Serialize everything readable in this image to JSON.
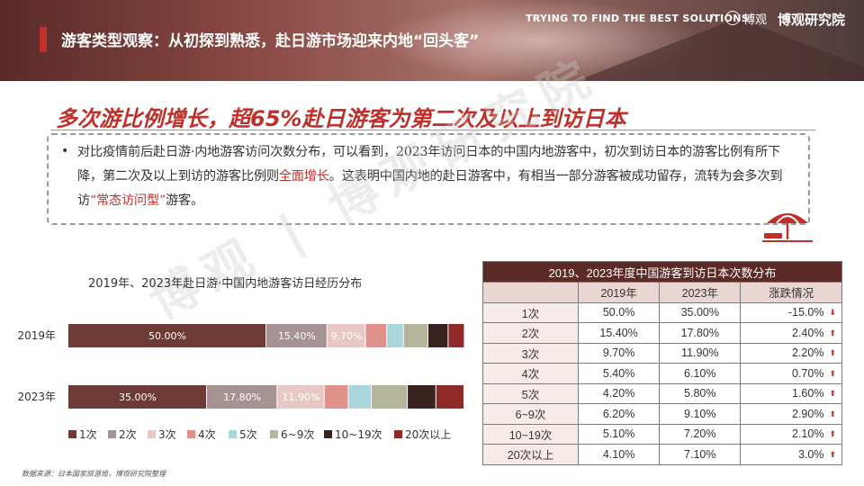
{
  "header": {
    "section_title": "游客类型观察：从初探到熟悉，赴日游市场迎来内地“回头客”",
    "slogan": "TRYING TO FIND THE BEST SOLUTIONS",
    "slash": "/",
    "brand": "博观研究院",
    "logo_mark": "博观"
  },
  "headline": "多次游比例增长，超65%赴日游客为第二次及以上到访日本",
  "summary": {
    "bullet": "•",
    "part1": "对比疫情前后赴日游·内地游客访问次数分布，可以看到，2023年访问日本的中国内地游客中，初次到访日本的游客比例有所下降，第二次及以上到访的游客比例则",
    "highlight1": "全面增长",
    "part2": "。这表明中国内地的赴日游客中，有相当一部分游客被成功留存，流转为会多次到访",
    "highlight2": "“常态访问型”",
    "part3": "游客。"
  },
  "watermark": "博观 | 博观研究院",
  "chart_data": {
    "type": "bar",
    "orientation": "horizontal",
    "stacked": true,
    "title": "2019年、2023年赴日游·中国内地游客访日经历分布",
    "categories": [
      "2019年",
      "2023年"
    ],
    "series": [
      {
        "name": "1次",
        "values": [
          50.0,
          35.0
        ],
        "color": "#6e3a36"
      },
      {
        "name": "2次",
        "values": [
          15.4,
          17.8
        ],
        "color": "#a69292"
      },
      {
        "name": "3次",
        "values": [
          9.7,
          11.9
        ],
        "color": "#e8c8c4"
      },
      {
        "name": "4次",
        "values": [
          5.4,
          6.1
        ],
        "color": "#e0918a"
      },
      {
        "name": "5次",
        "values": [
          4.2,
          5.8
        ],
        "color": "#a9d6dd"
      },
      {
        "name": "6~9次",
        "values": [
          6.2,
          9.1
        ],
        "color": "#b5b59c"
      },
      {
        "name": "10~19次",
        "values": [
          5.1,
          7.2
        ],
        "color": "#3a2220"
      },
      {
        "name": "20次以上",
        "values": [
          4.1,
          7.1
        ],
        "color": "#8f2a28"
      }
    ],
    "data_labels": [
      [
        "50.00%",
        "15.40%",
        "9.70%"
      ],
      [
        "35.00%",
        "17.80%",
        "11.90%"
      ]
    ],
    "legend_position": "bottom",
    "grid": false
  },
  "table": {
    "caption": "2019、2023年度中国游客到访日本次数分布",
    "headers": [
      "",
      "2019年",
      "2023年",
      "涨跌情况"
    ],
    "rows": [
      {
        "cat": "1次",
        "y2019": "50.0%",
        "y2023": "35.00%",
        "change": "-15.0%",
        "direction": "down"
      },
      {
        "cat": "2次",
        "y2019": "15.40%",
        "y2023": "17.80%",
        "change": "2.40%",
        "direction": "up"
      },
      {
        "cat": "3次",
        "y2019": "9.70%",
        "y2023": "11.90%",
        "change": "2.20%",
        "direction": "up"
      },
      {
        "cat": "4次",
        "y2019": "5.40%",
        "y2023": "6.10%",
        "change": "0.70%",
        "direction": "up"
      },
      {
        "cat": "5次",
        "y2019": "4.20%",
        "y2023": "5.80%",
        "change": "1.60%",
        "direction": "up"
      },
      {
        "cat": "6~9次",
        "y2019": "6.20%",
        "y2023": "9.10%",
        "change": "2.90%",
        "direction": "up"
      },
      {
        "cat": "10~19次",
        "y2019": "5.10%",
        "y2023": "7.20%",
        "change": "2.10%",
        "direction": "up"
      },
      {
        "cat": "20次以上",
        "y2019": "4.10%",
        "y2023": "7.10%",
        "change": "3.0%",
        "direction": "up"
      }
    ],
    "arrow_up": "⬆",
    "arrow_down": "⬇"
  },
  "source": "数据来源：日本国家旅游局，博观研究院整理",
  "colors": {
    "accent": "#c0302a",
    "table_header": "#5c2a27"
  }
}
